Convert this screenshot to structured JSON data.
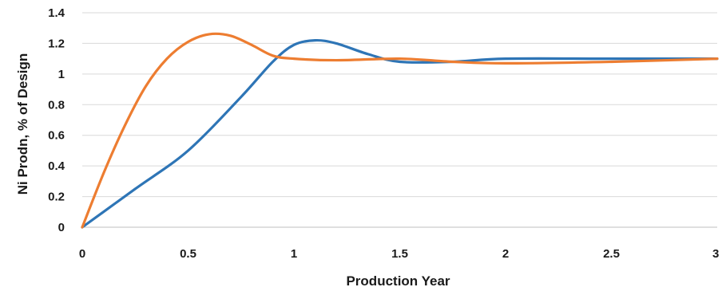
{
  "chart_data": {
    "type": "line",
    "title": "",
    "xlabel": "Production Year",
    "ylabel": "Ni Prodn, % of Design",
    "xlim": [
      0,
      3
    ],
    "ylim": [
      0,
      1.4
    ],
    "x_ticks": [
      0,
      0.5,
      1,
      1.5,
      2,
      2.5,
      3
    ],
    "x_tick_labels": [
      "0",
      "0.5",
      "1",
      "1.5",
      "2",
      "2.5",
      "3"
    ],
    "y_ticks": [
      0,
      0.2,
      0.4,
      0.6,
      0.8,
      1.0,
      1.2,
      1.4
    ],
    "y_tick_labels": [
      "0",
      "0.2",
      "0.4",
      "0.6",
      "0.8",
      "1",
      "1.2",
      "1.4"
    ],
    "grid": true,
    "legend": "none",
    "series": [
      {
        "color": "#2E75B6",
        "x": [
          0,
          0.25,
          0.5,
          0.75,
          0.9,
          1.0,
          1.1,
          1.2,
          1.35,
          1.5,
          1.75,
          2.0,
          2.5,
          3.0
        ],
        "y": [
          0,
          0.25,
          0.5,
          0.85,
          1.08,
          1.19,
          1.22,
          1.2,
          1.13,
          1.08,
          1.08,
          1.1,
          1.1,
          1.1
        ]
      },
      {
        "color": "#ED7D31",
        "x": [
          0,
          0.1,
          0.2,
          0.3,
          0.4,
          0.5,
          0.6,
          0.7,
          0.8,
          0.9,
          1.0,
          1.2,
          1.5,
          1.75,
          2.0,
          2.5,
          3.0
        ],
        "y": [
          0,
          0.35,
          0.66,
          0.92,
          1.1,
          1.21,
          1.26,
          1.25,
          1.19,
          1.12,
          1.1,
          1.09,
          1.1,
          1.08,
          1.07,
          1.08,
          1.1
        ]
      }
    ]
  }
}
